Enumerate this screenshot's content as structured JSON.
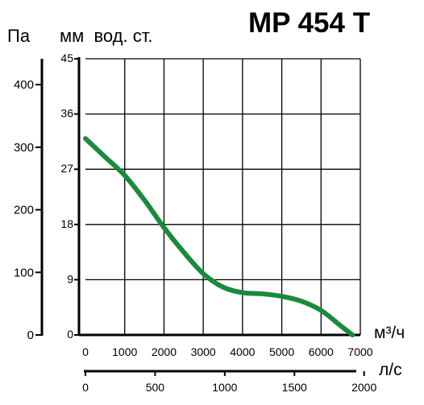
{
  "chart_data": {
    "type": "line",
    "title": "MP 454 T",
    "pa_label": "Па",
    "mm_label": "мм  вод. ст.",
    "x_unit_m3": "м³/ч",
    "x_unit_ls": "л/с",
    "y_mm_ticks": [
      "45",
      "36",
      "27",
      "18",
      "9",
      "0"
    ],
    "y_pa_ticks": [
      "400",
      "300",
      "200",
      "100",
      "0"
    ],
    "x_m3_ticks": [
      "0",
      "1000",
      "2000",
      "3000",
      "4000",
      "5000",
      "6000",
      "7000"
    ],
    "x_ls_ticks": [
      "0",
      "500",
      "1000",
      "1500",
      "2000"
    ],
    "xlim_m3h": [
      0,
      7000
    ],
    "ylim_mm": [
      0,
      45
    ],
    "ylim_pa": [
      0,
      441.3
    ],
    "xlim_ls": [
      0,
      1944
    ],
    "grid": true,
    "line_color": "#1a8a3c",
    "series": [
      {
        "x": [
          0,
          250,
          500,
          1000,
          1500,
          2000,
          2500,
          3000,
          3500,
          4000,
          4500,
          5000,
          5500,
          6000,
          6500,
          6800
        ],
        "values": [
          32.0,
          30.5,
          29.0,
          26.0,
          22.0,
          17.5,
          13.5,
          10.0,
          7.8,
          6.9,
          6.7,
          6.3,
          5.5,
          4.0,
          1.5,
          0.0
        ]
      }
    ]
  }
}
